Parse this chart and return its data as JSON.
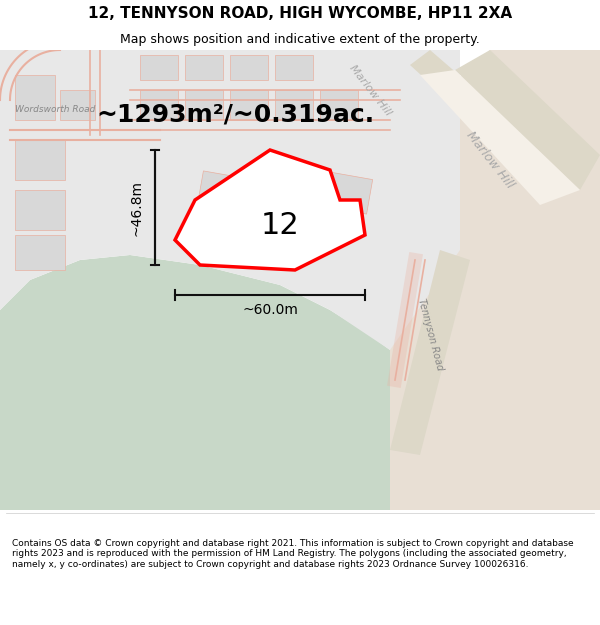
{
  "title": "12, TENNYSON ROAD, HIGH WYCOMBE, HP11 2XA",
  "subtitle": "Map shows position and indicative extent of the property.",
  "footer": "Contains OS data © Crown copyright and database right 2021. This information is subject to Crown copyright and database rights 2023 and is reproduced with the permission of HM Land Registry. The polygons (including the associated geometry, namely x, y co-ordinates) are subject to Crown copyright and database rights 2023 Ordnance Survey 100026316.",
  "area_text": "~1293m²/~0.319ac.",
  "label_12": "12",
  "dim_width": "~60.0m",
  "dim_height": "~46.8m",
  "bg_map_color": "#f0f0f0",
  "green_area_color": "#c8d8c8",
  "road_fill_color": "#e8e0d8",
  "road_line_color": "#e8b0a0",
  "plot_line_color": "#ff0000",
  "plot_fill_color": "#ffffff",
  "building_fill": "#e0e0e0",
  "building_line": "#d08080",
  "dim_line_color": "#111111",
  "title_fontsize": 11,
  "subtitle_fontsize": 9,
  "footer_fontsize": 6.5,
  "area_fontsize": 18,
  "label_fontsize": 22,
  "dim_fontsize": 10
}
